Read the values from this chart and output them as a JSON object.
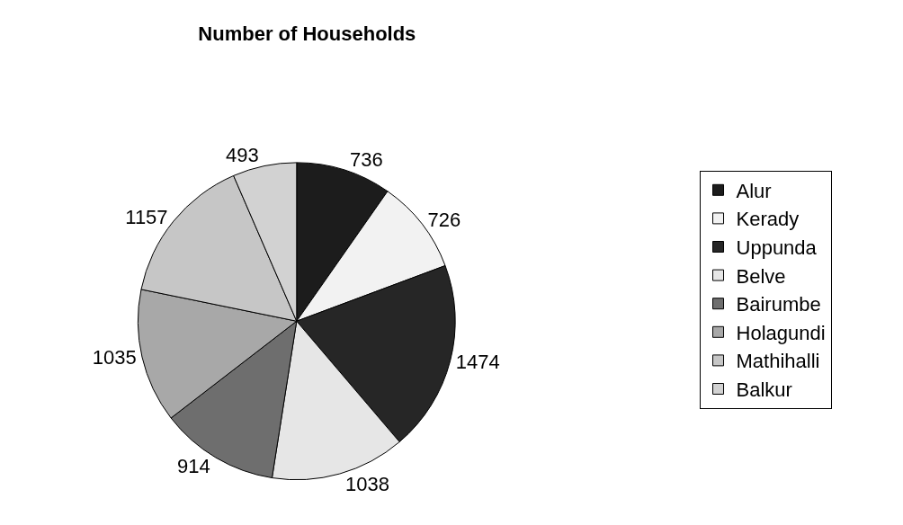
{
  "chart_data": {
    "type": "pie",
    "title": "Number of Households",
    "categories": [
      "Alur",
      "Kerady",
      "Uppunda",
      "Belve",
      "Bairumbe",
      "Holagundi",
      "Mathihalli",
      "Balkur"
    ],
    "values": [
      736,
      726,
      1474,
      1038,
      914,
      1035,
      1157,
      493
    ],
    "colors": [
      "#1c1c1c",
      "#f2f2f2",
      "#262626",
      "#e6e6e6",
      "#6e6e6e",
      "#a8a8a8",
      "#c6c6c6",
      "#d2d2d2"
    ],
    "data_labels": true,
    "legend": "right"
  }
}
